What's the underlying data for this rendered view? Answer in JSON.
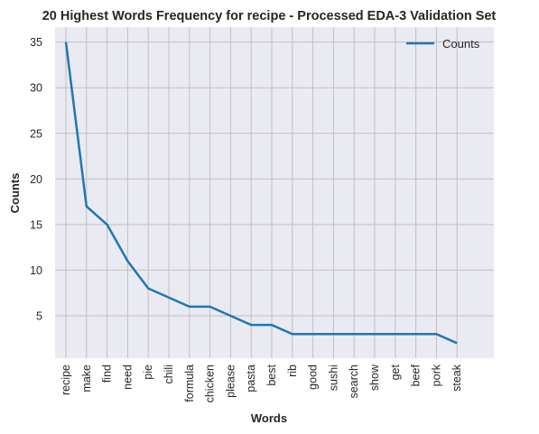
{
  "chart_data": {
    "type": "line",
    "title": "20 Highest Words Frequency for recipe - Processed EDA-3 Validation Set",
    "xlabel": "Words",
    "ylabel": "Counts",
    "categories": [
      "recipe",
      "make",
      "find",
      "need",
      "pie",
      "chili",
      "formula",
      "chicken",
      "please",
      "pasta",
      "best",
      "rib",
      "good",
      "sushi",
      "search",
      "show",
      "get",
      "beef",
      "pork",
      "steak"
    ],
    "series": [
      {
        "name": "Counts",
        "values": [
          35,
          17,
          15,
          11,
          8,
          7,
          6,
          6,
          5,
          4,
          4,
          3,
          3,
          3,
          3,
          3,
          3,
          3,
          3,
          2
        ],
        "color": "#1f77b4"
      }
    ],
    "yticks": [
      5,
      10,
      15,
      20,
      25,
      30,
      35
    ],
    "ylim": [
      0.35,
      36.65
    ],
    "grid": true,
    "legend_position": "top-right",
    "background_color": "#eaeaf2",
    "grid_color": "#c0c0c0"
  }
}
